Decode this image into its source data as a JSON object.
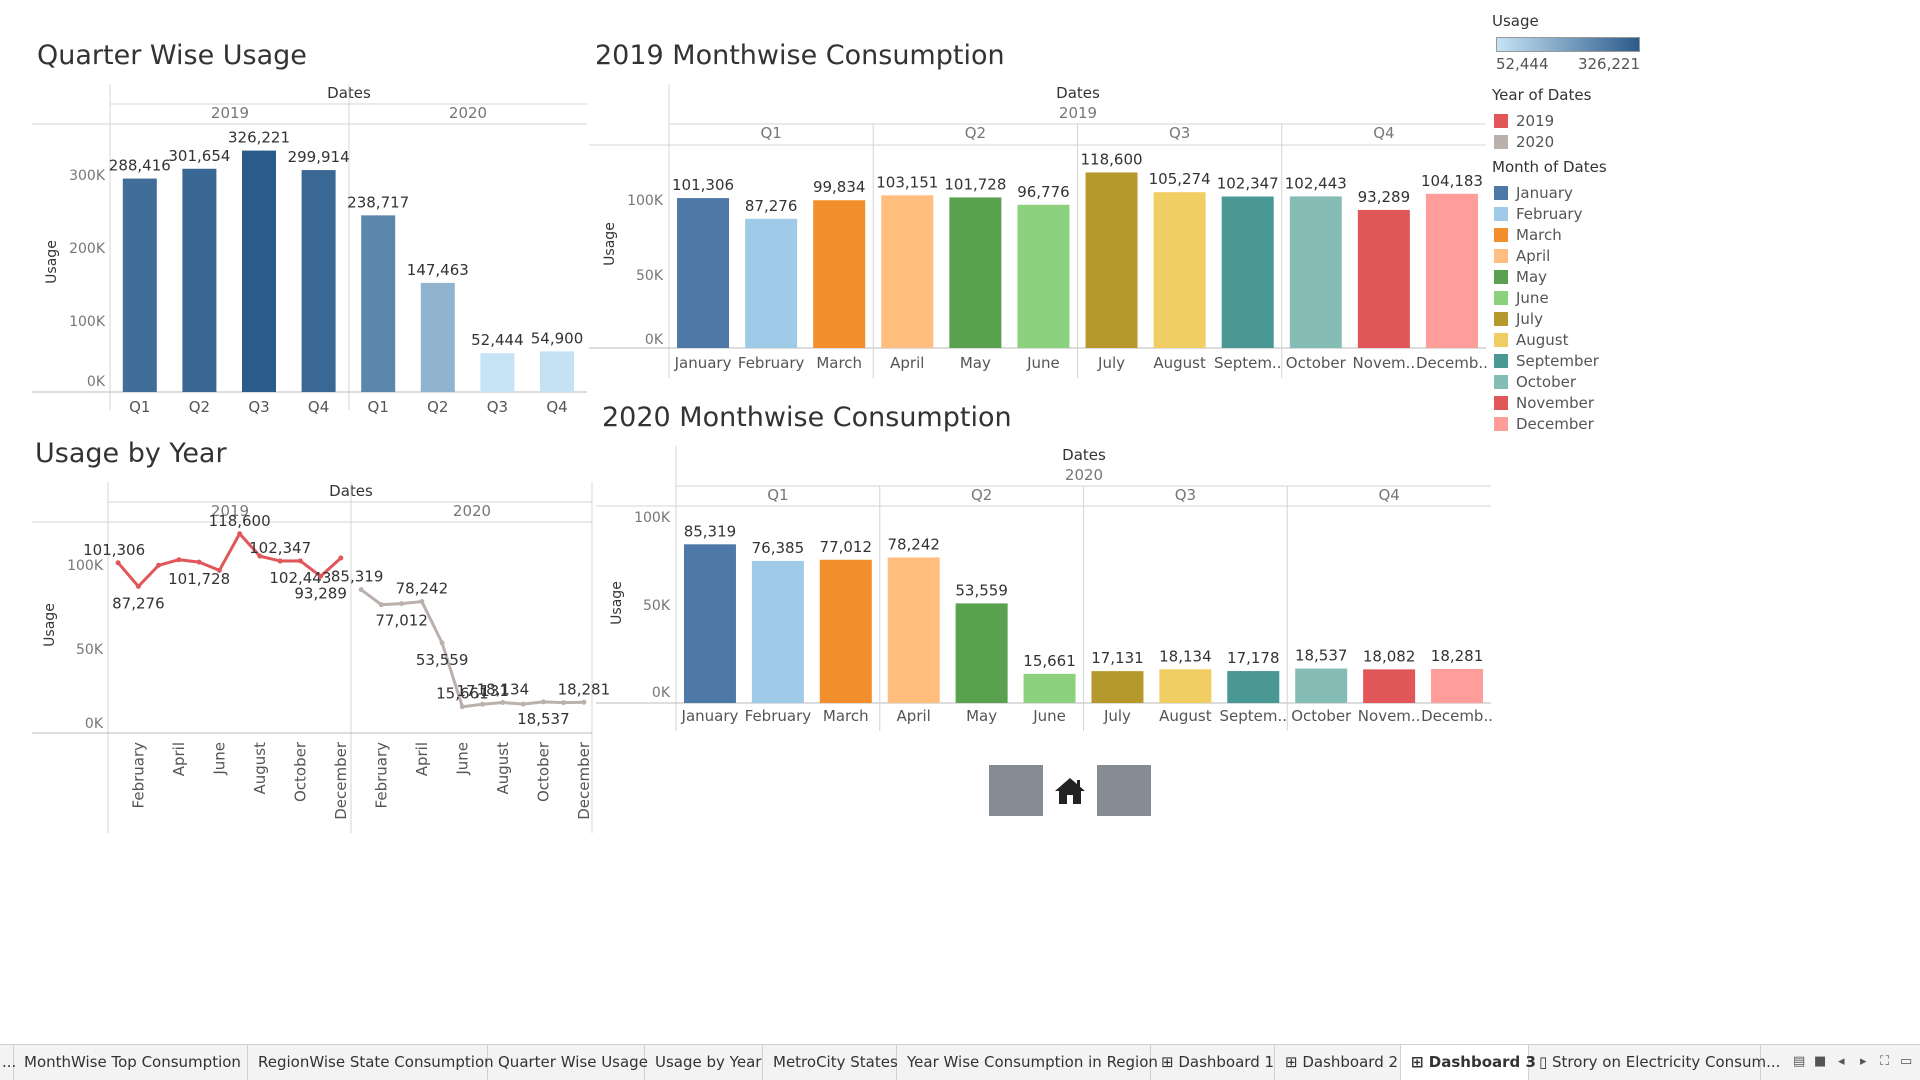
{
  "charts": {
    "quarter": {
      "title": "Quarter Wise Usage",
      "header": "Dates",
      "years": [
        "2019",
        "2020"
      ],
      "ylabel": "Usage",
      "y_ticks": [
        "300K",
        "200K",
        "100K",
        "0K"
      ]
    },
    "yearly": {
      "title": "Usage by Year",
      "header": "Dates",
      "years": [
        "2019",
        "2020"
      ],
      "ylabel": "Usage",
      "y_ticks": [
        "100K",
        "50K",
        "0K"
      ]
    },
    "m2019": {
      "title": "2019 Monthwise Consumption",
      "header": "Dates",
      "year": "2019",
      "quarters": [
        "Q1",
        "Q2",
        "Q3",
        "Q4"
      ],
      "ylabel": "Usage",
      "y_ticks": [
        "100K",
        "50K",
        "0K"
      ]
    },
    "m2020": {
      "title": "2020 Monthwise Consumption",
      "header": "Dates",
      "year": "2020",
      "quarters": [
        "Q1",
        "Q2",
        "Q3",
        "Q4"
      ],
      "ylabel": "Usage",
      "y_ticks": [
        "100K",
        "50K",
        "0K"
      ]
    }
  },
  "legend": {
    "usage_title": "Usage",
    "usage_min": "52,444",
    "usage_max": "326,221",
    "gradient_from": "#c6e3f5",
    "gradient_to": "#2b5b8a",
    "year_title": "Year of Dates",
    "years": [
      {
        "label": "2019",
        "color": "#e15759"
      },
      {
        "label": "2020",
        "color": "#bab0ac"
      }
    ],
    "month_title": "Month of Dates",
    "months": [
      {
        "label": "January",
        "color": "#4e79a7"
      },
      {
        "label": "February",
        "color": "#a0cbe8"
      },
      {
        "label": "March",
        "color": "#f28e2b"
      },
      {
        "label": "April",
        "color": "#ffbe7d"
      },
      {
        "label": "May",
        "color": "#59a14f"
      },
      {
        "label": "June",
        "color": "#8cd17d"
      },
      {
        "label": "July",
        "color": "#b6992d"
      },
      {
        "label": "August",
        "color": "#f1ce63"
      },
      {
        "label": "September",
        "color": "#499894"
      },
      {
        "label": "October",
        "color": "#86bcb6"
      },
      {
        "label": "November",
        "color": "#e15759"
      },
      {
        "label": "December",
        "color": "#ff9d9a"
      }
    ]
  },
  "nav": {
    "home_icon": "home-icon"
  },
  "tabs": [
    {
      "label": "...",
      "active": false
    },
    {
      "label": "MonthWise Top Consumption",
      "active": false
    },
    {
      "label": "RegionWise State Consumption",
      "active": false
    },
    {
      "label": "Quarter Wise Usage",
      "active": false
    },
    {
      "label": "Usage by Year",
      "active": false
    },
    {
      "label": "MetroCity States",
      "active": false
    },
    {
      "label": "Year Wise Consumption in Region",
      "active": false
    },
    {
      "label": "Dashboard 1",
      "active": false,
      "icon": "grid-icon"
    },
    {
      "label": "Dashboard 2",
      "active": false,
      "icon": "grid-icon"
    },
    {
      "label": "Dashboard 3",
      "active": true,
      "icon": "grid-icon"
    },
    {
      "label": "Strory on Electricity Consum...",
      "active": false,
      "icon": "story-icon"
    }
  ],
  "chart_data": [
    {
      "id": "quarter",
      "type": "bar",
      "title": "Quarter Wise Usage",
      "xlabel": "Dates",
      "ylabel": "Usage",
      "ylim": [
        0,
        330000
      ],
      "groups": [
        "2019",
        "2020"
      ],
      "categories": [
        "Q1",
        "Q2",
        "Q3",
        "Q4",
        "Q1",
        "Q2",
        "Q3",
        "Q4"
      ],
      "values": [
        288416,
        301654,
        326221,
        299914,
        238717,
        147463,
        52444,
        54900
      ],
      "labels": [
        "288,416",
        "301,654",
        "326,221",
        "299,914",
        "238,717",
        "147,463",
        "52,444",
        "54,900"
      ],
      "color_scale": [
        "#c6e3f5",
        "#2b5b8a"
      ]
    },
    {
      "id": "yearly",
      "type": "line",
      "title": "Usage by Year",
      "xlabel": "Dates",
      "ylabel": "Usage",
      "ylim": [
        0,
        120000
      ],
      "tick_labels": [
        "February",
        "April",
        "June",
        "August",
        "October",
        "December"
      ],
      "series": [
        {
          "name": "2019",
          "color": "#e15759",
          "x": [
            "January",
            "February",
            "March",
            "April",
            "May",
            "June",
            "July",
            "August",
            "September",
            "October",
            "November",
            "December"
          ],
          "values": [
            101306,
            87276,
            99834,
            103151,
            101728,
            96776,
            118600,
            105274,
            102347,
            102443,
            93289,
            104183
          ],
          "labels": [
            "101,306",
            "87,276",
            "",
            "",
            "101,728",
            "",
            "118,600",
            "",
            "102,347",
            "102,443",
            "93,289",
            ""
          ]
        },
        {
          "name": "2020",
          "color": "#bab0ac",
          "x": [
            "January",
            "February",
            "March",
            "April",
            "May",
            "June",
            "July",
            "August",
            "September",
            "October",
            "November",
            "December"
          ],
          "values": [
            85319,
            76385,
            77012,
            78242,
            53559,
            15661,
            17131,
            18134,
            17178,
            18537,
            18082,
            18281
          ],
          "labels": [
            "85,319",
            "",
            "77,012",
            "78,242",
            "53,559",
            "15,661",
            "17,131",
            "18,134",
            "",
            "18,537",
            "",
            "18,281"
          ]
        }
      ]
    },
    {
      "id": "m2019",
      "type": "bar",
      "title": "2019 Monthwise Consumption",
      "xlabel": "Dates",
      "ylabel": "Usage",
      "ylim": [
        0,
        125000
      ],
      "categories": [
        "January",
        "February",
        "March",
        "April",
        "May",
        "June",
        "July",
        "August",
        "Septem..",
        "October",
        "Novem..",
        "Decemb.."
      ],
      "values": [
        101306,
        87276,
        99834,
        103151,
        101728,
        96776,
        118600,
        105274,
        102347,
        102443,
        93289,
        104183
      ],
      "labels": [
        "101,306",
        "87,276",
        "99,834",
        "103,151",
        "101,728",
        "96,776",
        "118,600",
        "105,274",
        "102,347",
        "102,443",
        "93,289",
        "104,183"
      ]
    },
    {
      "id": "m2020",
      "type": "bar",
      "title": "2020 Monthwise Consumption",
      "xlabel": "Dates",
      "ylabel": "Usage",
      "ylim": [
        0,
        110000
      ],
      "categories": [
        "January",
        "February",
        "March",
        "April",
        "May",
        "June",
        "July",
        "August",
        "Septem..",
        "October",
        "Novem..",
        "Decemb.."
      ],
      "values": [
        85319,
        76385,
        77012,
        78242,
        53559,
        15661,
        17131,
        18134,
        17178,
        18537,
        18082,
        18281
      ],
      "labels": [
        "85,319",
        "76,385",
        "77,012",
        "78,242",
        "53,559",
        "15,661",
        "17,131",
        "18,134",
        "17,178",
        "18,537",
        "18,082",
        "18,281"
      ]
    }
  ]
}
